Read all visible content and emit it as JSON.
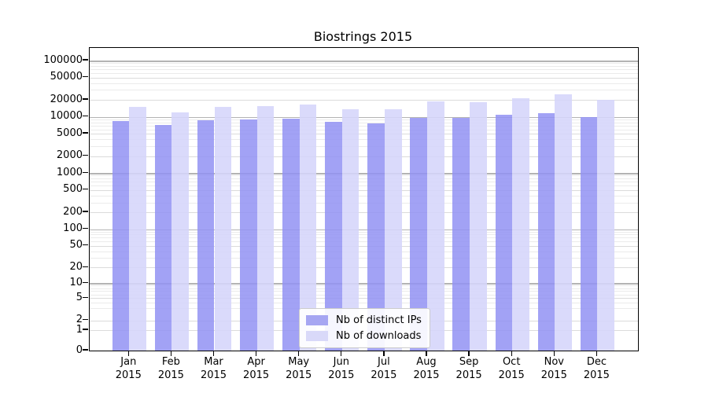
{
  "title": "Biostrings 2015",
  "colors": {
    "distinct_ips_bar": "#a6a6f2",
    "downloads_bar": "#d9d9f9",
    "grid_decade": "#b3b3b3",
    "grid_labeled": "#dbdbdb",
    "grid_minor": "#ebebeb",
    "axis": "#000000",
    "legend_border": "#cccccc"
  },
  "legend": {
    "items": [
      {
        "label": "Nb of distinct IPs",
        "color": "#a6a6f2"
      },
      {
        "label": "Nb of downloads",
        "color": "#d9d9f9"
      }
    ]
  },
  "y_axis": {
    "tick_labels": [
      "100000",
      "50000",
      "20000",
      "10000",
      "5000",
      "2000",
      "1000",
      "500",
      "200",
      "100",
      "50",
      "20",
      "10",
      "5",
      "2",
      "1",
      "0"
    ],
    "tick_values": [
      100000,
      50000,
      20000,
      10000,
      5000,
      2000,
      1000,
      500,
      200,
      100,
      50,
      20,
      10,
      5,
      2,
      1,
      0
    ]
  },
  "chart_data": {
    "type": "bar",
    "title": "Biostrings 2015",
    "categories": [
      "Jan 2015",
      "Feb 2015",
      "Mar 2015",
      "Apr 2015",
      "May 2015",
      "Jun 2015",
      "Jul 2015",
      "Aug 2015",
      "Sep 2015",
      "Oct 2015",
      "Nov 2015",
      "Dec 2015"
    ],
    "series": [
      {
        "name": "Nb of distinct IPs",
        "color": "#a6a6f2",
        "values": [
          8500,
          7100,
          8600,
          9000,
          9200,
          8100,
          7700,
          9500,
          9600,
          10900,
          11700,
          10000
        ]
      },
      {
        "name": "Nb of downloads",
        "color": "#d9d9f9",
        "values": [
          15100,
          12000,
          15200,
          15600,
          16400,
          13700,
          13500,
          19000,
          18300,
          21600,
          25400,
          20000
        ]
      }
    ],
    "xlabel": "",
    "ylabel": "",
    "yscale": "log1p",
    "ylim": [
      0,
      100000
    ],
    "yticks": [
      0,
      1,
      2,
      5,
      10,
      20,
      50,
      100,
      200,
      500,
      1000,
      2000,
      5000,
      10000,
      20000,
      50000,
      100000
    ],
    "grid": true,
    "legend_position": "lower center"
  }
}
